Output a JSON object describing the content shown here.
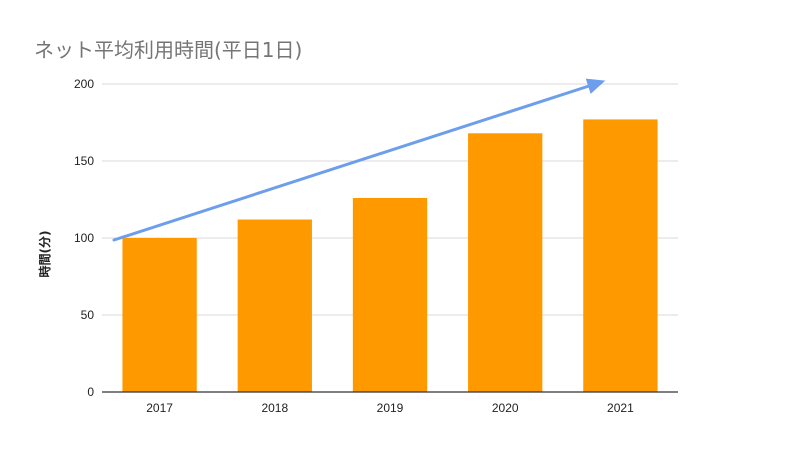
{
  "chart_data": {
    "type": "bar",
    "title": "ネット平均利用時間(平日1日)",
    "xlabel": "",
    "ylabel": "時間(分)",
    "categories": [
      "2017",
      "2018",
      "2019",
      "2020",
      "2021"
    ],
    "values": [
      100,
      112,
      126,
      168,
      177
    ],
    "ylim": [
      0,
      200
    ],
    "yticks": [
      "0",
      "50",
      "100",
      "150",
      "200"
    ],
    "grid": true,
    "legend": "none",
    "annotation": "trend-arrow",
    "colors": {
      "bar": "#ff9900",
      "arrow": "#6d9eeb",
      "grid": "#d9d9d9",
      "axis": "#333333"
    }
  }
}
